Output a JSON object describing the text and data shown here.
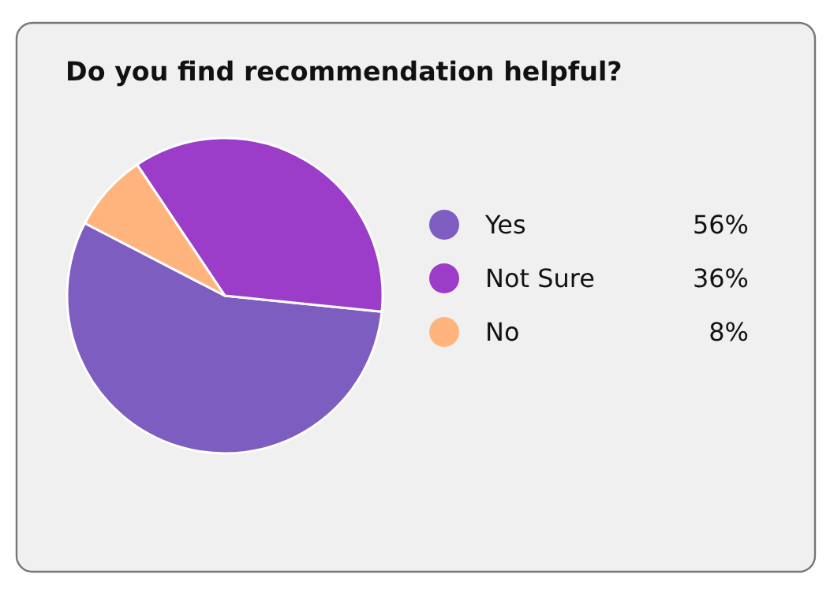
{
  "chart_data": {
    "type": "pie",
    "title": "Do you find recommendation helpful?",
    "categories": [
      "Yes",
      "Not Sure",
      "No"
    ],
    "values": [
      56,
      36,
      8
    ],
    "colors": [
      "#7e5dc0",
      "#9b3dc8",
      "#ffb47d"
    ],
    "value_labels": [
      "56%",
      "36%",
      "8%"
    ],
    "legend": "right"
  }
}
